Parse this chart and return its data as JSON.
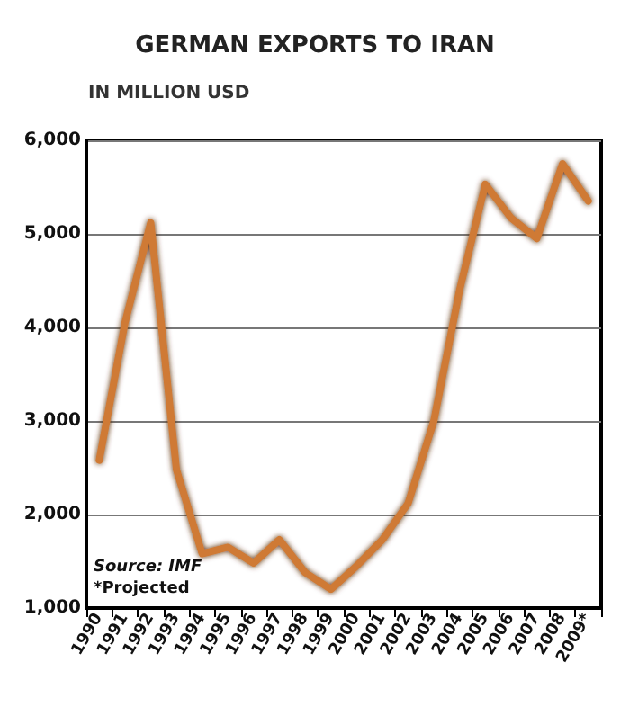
{
  "chart_data": {
    "type": "line",
    "title": "GERMAN EXPORTS TO IRAN",
    "subtitle": "IN MILLION USD",
    "categories": [
      "1990",
      "1991",
      "1992",
      "1993",
      "1994",
      "1995",
      "1996",
      "1997",
      "1998",
      "1999",
      "2000",
      "2001",
      "2002",
      "2003",
      "2004",
      "2005",
      "2006",
      "2007",
      "2008",
      "2009*"
    ],
    "series": [
      {
        "color": "#cf7a35",
        "values": [
          2580,
          4050,
          5120,
          2480,
          1580,
          1650,
          1480,
          1730,
          1380,
          1200,
          1450,
          1730,
          2120,
          3000,
          4400,
          5530,
          5170,
          4950,
          5750,
          5350
        ]
      }
    ],
    "ylim": [
      1000,
      6000
    ],
    "yticks": [
      {
        "value": 1000,
        "label": "1,000"
      },
      {
        "value": 2000,
        "label": "2,000"
      },
      {
        "value": 3000,
        "label": "3,000"
      },
      {
        "value": 4000,
        "label": "4,000"
      },
      {
        "value": 5000,
        "label": "5,000"
      },
      {
        "value": 6000,
        "label": "6,000"
      }
    ],
    "grid": "y",
    "marker": "none",
    "line_style": "solid",
    "annotations": [
      "Source: IMF",
      "*Projected"
    ]
  }
}
